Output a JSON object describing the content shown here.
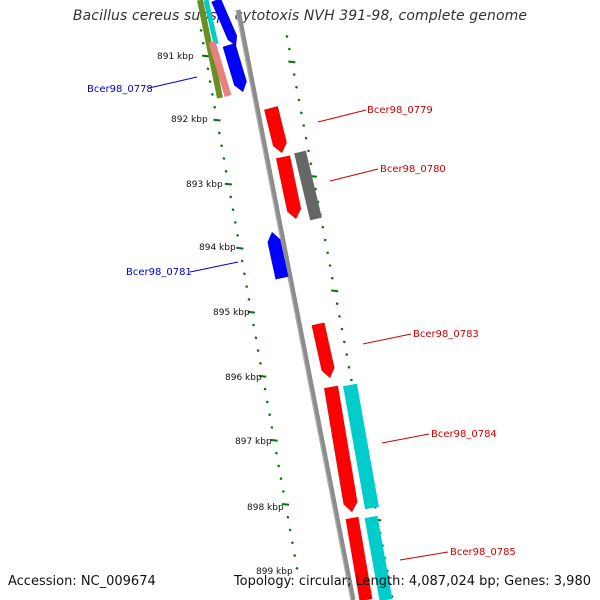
{
  "title": "Bacillus cereus subsp. cytotoxis NVH 391-98, complete genome",
  "footer": {
    "accession": "Accession: NC_009674",
    "summary": "Topology: circular; Length: 4,087,024 bp; Genes: 3,980"
  },
  "ruler_labels": [
    "891 kbp",
    "892 kbp",
    "893 kbp",
    "894 kbp",
    "895 kbp",
    "896 kbp",
    "897 kbp",
    "898 kbp",
    "899 kbp"
  ],
  "gene_labels": [
    {
      "text": "Bcer98_0778",
      "color": "#0000cc"
    },
    {
      "text": "Bcer98_0779",
      "color": "#cc0000"
    },
    {
      "text": "Bcer98_0780",
      "color": "#cc0000"
    },
    {
      "text": "Bcer98_0781",
      "color": "#0000cc"
    },
    {
      "text": "Bcer98_0783",
      "color": "#cc0000"
    },
    {
      "text": "Bcer98_0784",
      "color": "#cc0000"
    },
    {
      "text": "Bcer98_0785",
      "color": "#cc0000"
    }
  ],
  "colors": {
    "backbone": "#8c8c8c",
    "tick": "#007700",
    "red": "#ff0000",
    "blue": "#0000ff",
    "cyan": "#00cccc",
    "gray": "#666666",
    "olive": "#6b8e23",
    "pink": "#e88080"
  }
}
